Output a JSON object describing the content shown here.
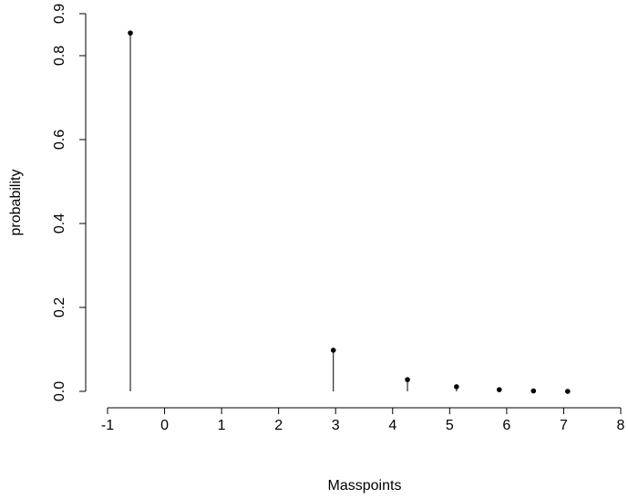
{
  "chart_data": {
    "type": "stem",
    "x_label": "Masspoints",
    "y_label": "probability",
    "x": [
      -0.6,
      2.96,
      4.26,
      5.12,
      5.87,
      6.47,
      7.07
    ],
    "values": [
      0.854,
      0.098,
      0.028,
      0.011,
      0.004,
      0.001,
      0.0
    ],
    "color": "#000000",
    "xlim": [
      -1,
      8
    ],
    "xticks": [
      -1,
      0,
      1,
      2,
      3,
      4,
      5,
      6,
      7,
      8
    ],
    "ylim": [
      0,
      0.9
    ],
    "yticks": [
      {
        "value": 0,
        "label": "0.0"
      },
      0.2,
      0.4,
      0.6,
      0.8,
      0.9
    ],
    "grid": false
  }
}
